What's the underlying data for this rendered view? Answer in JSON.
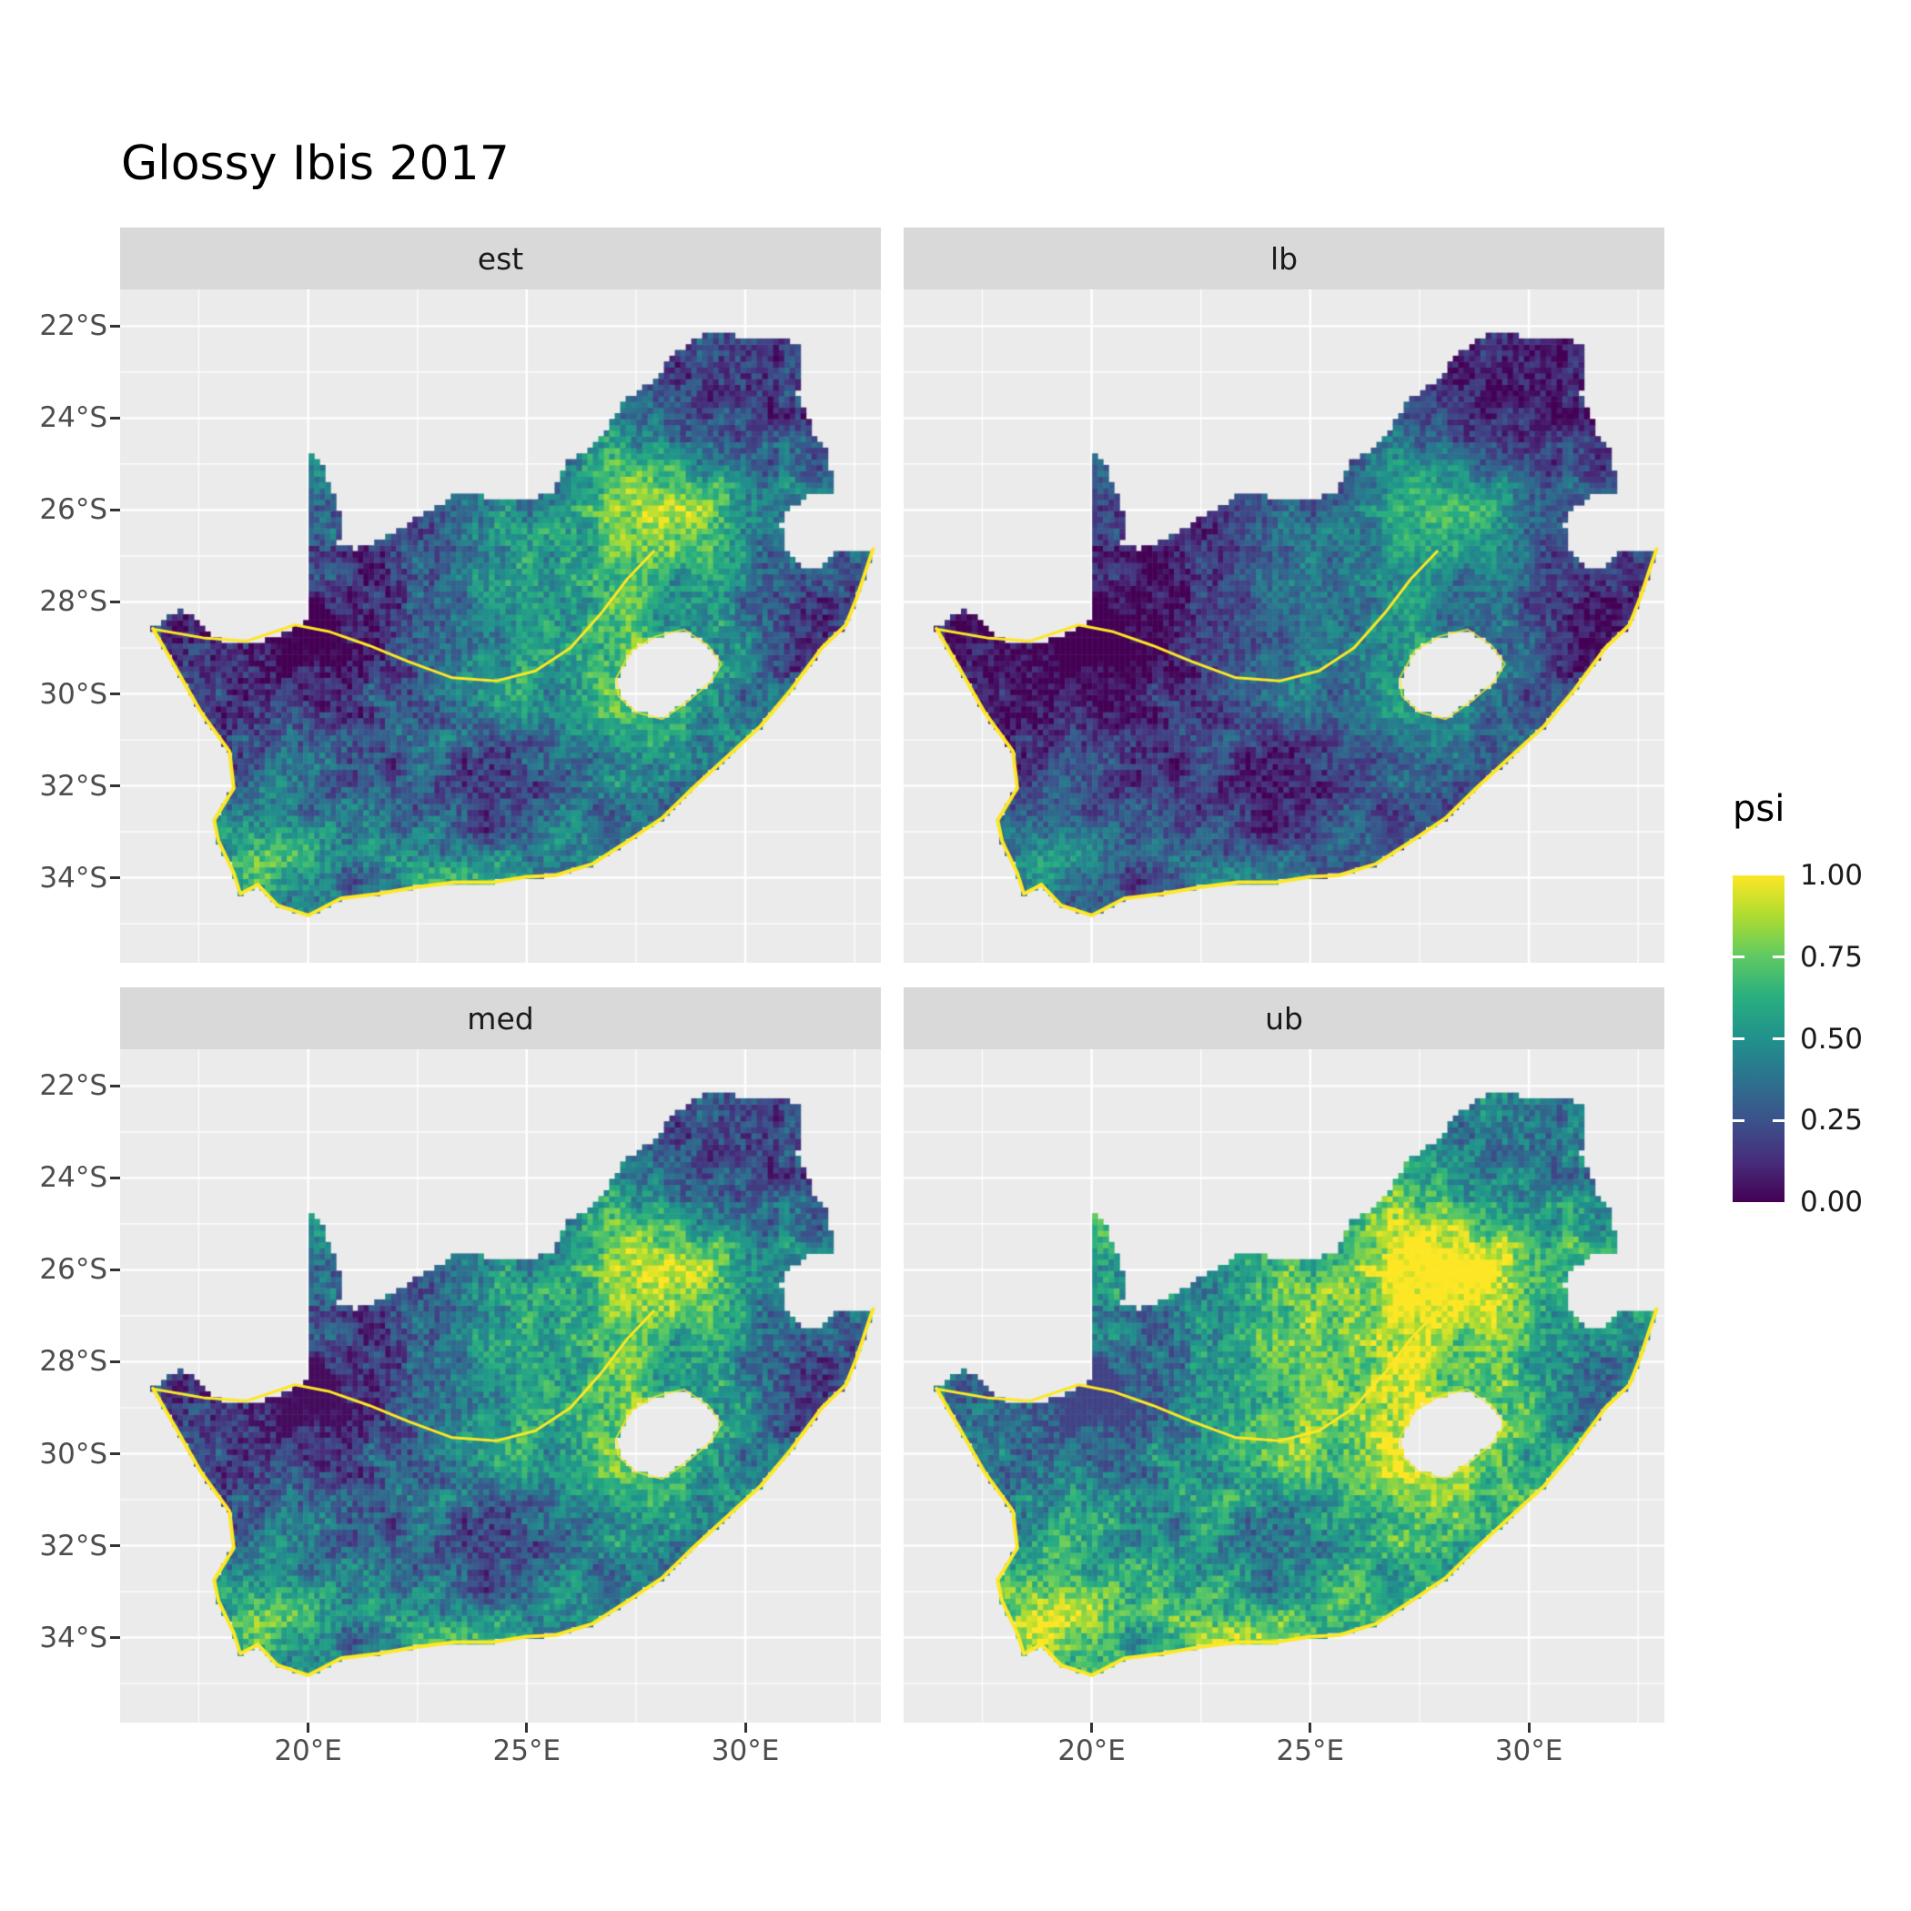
{
  "title": "Glossy Ibis 2017",
  "chart_data": {
    "type": "heatmap",
    "title": "Glossy Ibis 2017",
    "facets": [
      {
        "label": "est"
      },
      {
        "label": "lb"
      },
      {
        "label": "med"
      },
      {
        "label": "ub"
      }
    ],
    "x_axis": {
      "domain": [
        15.7,
        33.1
      ],
      "tick_values": [
        20,
        25,
        30
      ],
      "tick_labels": [
        "20°E",
        "25°E",
        "30°E"
      ],
      "minor_gridlines": [
        17.5,
        22.5,
        27.5,
        32.5
      ]
    },
    "y_axis": {
      "domain": [
        -35.85,
        -21.2
      ],
      "tick_values": [
        -22,
        -24,
        -26,
        -28,
        -30,
        -32,
        -34
      ],
      "tick_labels": [
        "22°S",
        "24°S",
        "26°S",
        "28°S",
        "30°S",
        "32°S",
        "34°S"
      ],
      "minor_gridlines": [
        -23,
        -25,
        -27,
        -29,
        -31,
        -33,
        -35
      ]
    },
    "legend": {
      "title": "psi",
      "tick_values": [
        1.0,
        0.75,
        0.5,
        0.25,
        0.0
      ],
      "tick_labels": [
        "1.00",
        "0.75",
        "0.50",
        "0.25",
        "0.00"
      ]
    },
    "palette": {
      "name": "viridis",
      "stops": [
        [
          0.0,
          "#440154"
        ],
        [
          0.125,
          "#472D7B"
        ],
        [
          0.25,
          "#3B528B"
        ],
        [
          0.375,
          "#2C728E"
        ],
        [
          0.5,
          "#21918C"
        ],
        [
          0.625,
          "#28AE80"
        ],
        [
          0.75,
          "#5EC962"
        ],
        [
          0.875,
          "#ADDC30"
        ],
        [
          1.0,
          "#FDE725"
        ]
      ]
    },
    "colors": {
      "panel_bg": "#EBEBEB",
      "strip_bg": "#D9D9D9",
      "gridline": "#FFFFFF",
      "axis_text": "#4D4D4D",
      "strip_text": "#1A1A1A",
      "title_text": "#000000",
      "outline_highlight": "#FDE725",
      "tick_mark": "#333333"
    },
    "facet_transforms": [
      {
        "facet": "est",
        "gain": 1.0,
        "bias": 0.0
      },
      {
        "facet": "lb",
        "gain": 0.85,
        "bias": -0.07
      },
      {
        "facet": "med",
        "gain": 1.02,
        "bias": 0.03
      },
      {
        "facet": "ub",
        "gain": 1.05,
        "bias": 0.2
      }
    ],
    "cell_size_deg": 0.125,
    "geometry": {
      "south_africa_outline": [
        [
          16.45,
          -28.58
        ],
        [
          16.8,
          -28.3
        ],
        [
          17.1,
          -28.2
        ],
        [
          17.45,
          -28.4
        ],
        [
          17.9,
          -28.78
        ],
        [
          18.2,
          -28.9
        ],
        [
          18.9,
          -28.85
        ],
        [
          19.4,
          -28.72
        ],
        [
          19.98,
          -28.42
        ],
        [
          19.98,
          -24.75
        ],
        [
          20.35,
          -25.05
        ],
        [
          20.6,
          -25.75
        ],
        [
          20.78,
          -26.25
        ],
        [
          20.68,
          -26.8
        ],
        [
          21.1,
          -26.85
        ],
        [
          21.7,
          -26.65
        ],
        [
          22.2,
          -26.35
        ],
        [
          22.9,
          -25.95
        ],
        [
          23.5,
          -25.6
        ],
        [
          24.2,
          -25.75
        ],
        [
          24.9,
          -25.8
        ],
        [
          25.6,
          -25.6
        ],
        [
          25.9,
          -24.95
        ],
        [
          26.45,
          -24.65
        ],
        [
          26.85,
          -24.25
        ],
        [
          27.2,
          -23.65
        ],
        [
          27.95,
          -23.15
        ],
        [
          28.35,
          -22.6
        ],
        [
          29.05,
          -22.2
        ],
        [
          29.45,
          -22.15
        ],
        [
          30.3,
          -22.3
        ],
        [
          31.3,
          -22.35
        ],
        [
          31.2,
          -23.45
        ],
        [
          31.55,
          -24.3
        ],
        [
          31.9,
          -24.8
        ],
        [
          32.05,
          -25.6
        ],
        [
          31.45,
          -25.7
        ],
        [
          31.0,
          -25.95
        ],
        [
          30.8,
          -26.3
        ],
        [
          30.95,
          -26.85
        ],
        [
          31.25,
          -27.2
        ],
        [
          31.6,
          -27.3
        ],
        [
          32.15,
          -26.85
        ],
        [
          32.92,
          -26.85
        ],
        [
          32.55,
          -27.9
        ],
        [
          32.3,
          -28.5
        ],
        [
          31.75,
          -29.0
        ],
        [
          31.05,
          -29.9
        ],
        [
          30.35,
          -30.7
        ],
        [
          29.6,
          -31.35
        ],
        [
          28.8,
          -32.05
        ],
        [
          28.1,
          -32.7
        ],
        [
          27.4,
          -33.15
        ],
        [
          26.5,
          -33.7
        ],
        [
          25.65,
          -33.95
        ],
        [
          25.0,
          -33.98
        ],
        [
          24.2,
          -34.1
        ],
        [
          23.35,
          -34.1
        ],
        [
          22.5,
          -34.2
        ],
        [
          21.6,
          -34.35
        ],
        [
          20.75,
          -34.45
        ],
        [
          20.0,
          -34.82
        ],
        [
          19.3,
          -34.6
        ],
        [
          18.85,
          -34.15
        ],
        [
          18.45,
          -34.35
        ],
        [
          18.3,
          -33.9
        ],
        [
          17.95,
          -33.2
        ],
        [
          17.85,
          -32.75
        ],
        [
          18.3,
          -32.05
        ],
        [
          18.2,
          -31.25
        ],
        [
          17.55,
          -30.4
        ],
        [
          16.95,
          -29.4
        ]
      ],
      "coast_start_index": 43,
      "lesotho_hole": [
        [
          27.05,
          -29.65
        ],
        [
          27.4,
          -29.05
        ],
        [
          27.95,
          -28.75
        ],
        [
          28.6,
          -28.6
        ],
        [
          29.15,
          -28.95
        ],
        [
          29.45,
          -29.35
        ],
        [
          29.2,
          -29.75
        ],
        [
          28.7,
          -30.15
        ],
        [
          28.1,
          -30.55
        ],
        [
          27.5,
          -30.4
        ],
        [
          27.1,
          -30.05
        ]
      ],
      "orange_vaal_river": [
        [
          16.5,
          -28.6
        ],
        [
          17.6,
          -28.78
        ],
        [
          18.6,
          -28.85
        ],
        [
          19.7,
          -28.5
        ],
        [
          20.5,
          -28.65
        ],
        [
          21.4,
          -28.95
        ],
        [
          22.3,
          -29.3
        ],
        [
          23.3,
          -29.65
        ],
        [
          24.3,
          -29.72
        ],
        [
          25.2,
          -29.5
        ],
        [
          26.0,
          -29.0
        ],
        [
          26.7,
          -28.25
        ],
        [
          27.3,
          -27.5
        ],
        [
          27.9,
          -26.9
        ]
      ]
    }
  }
}
